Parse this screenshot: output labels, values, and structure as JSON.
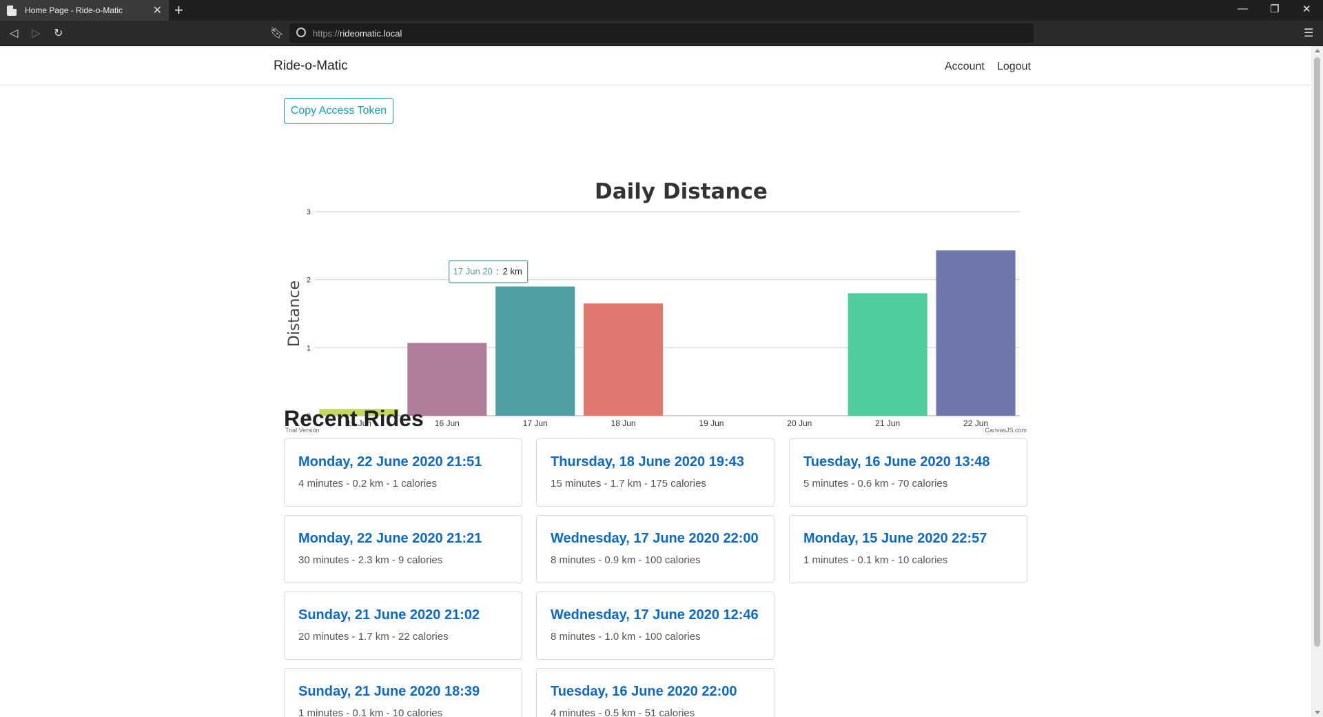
{
  "browser": {
    "tab_title": "Home Page - Ride-o-Matic",
    "url_scheme": "https://",
    "url_host": "rideomatic.local"
  },
  "site": {
    "brand": "Ride-o-Matic",
    "nav": {
      "account": "Account",
      "logout": "Logout"
    },
    "copy_token_label": "Copy Access Token"
  },
  "chart_data": {
    "type": "bar",
    "title": "Daily Distance",
    "ylabel": "Distance",
    "xlabel": "",
    "ylim": [
      0,
      3
    ],
    "yticks": [
      0,
      1,
      2,
      3
    ],
    "categories": [
      "15 Jun",
      "16 Jun",
      "17 Jun",
      "18 Jun",
      "19 Jun",
      "20 Jun",
      "21 Jun",
      "22 Jun"
    ],
    "values": [
      0.1,
      1.07,
      1.9,
      1.65,
      0,
      0,
      1.8,
      2.43
    ],
    "colors": [
      "#c5d65c",
      "#af7d99",
      "#4e9fa0",
      "#e07870",
      "#cccccc",
      "#cccccc",
      "#50cd9c",
      "#6f78ad"
    ],
    "tooltip": {
      "label": "17 Jun 20",
      "value": "2 km",
      "category_index": 2
    },
    "watermark_left": "Trial Version",
    "watermark_right": "CanvasJS.com"
  },
  "recent_rides": {
    "title": "Recent Rides",
    "columns": [
      [
        {
          "date": "Monday, 22 June 2020 21:51",
          "stats": "4 minutes - 0.2 km - 1 calories"
        },
        {
          "date": "Monday, 22 June 2020 21:21",
          "stats": "30 minutes - 2.3 km - 9 calories"
        },
        {
          "date": "Sunday, 21 June 2020 21:02",
          "stats": "20 minutes - 1.7 km - 22 calories"
        },
        {
          "date": "Sunday, 21 June 2020 18:39",
          "stats": "1 minutes - 0.1 km - 10 calories"
        }
      ],
      [
        {
          "date": "Thursday, 18 June 2020 19:43",
          "stats": "15 minutes - 1.7 km - 175 calories"
        },
        {
          "date": "Wednesday, 17 June 2020 22:00",
          "stats": "8 minutes - 0.9 km - 100 calories"
        },
        {
          "date": "Wednesday, 17 June 2020 12:46",
          "stats": "8 minutes - 1.0 km - 100 calories"
        },
        {
          "date": "Tuesday, 16 June 2020 22:00",
          "stats": "4 minutes - 0.5 km - 51 calories"
        }
      ],
      [
        {
          "date": "Tuesday, 16 June 2020 13:48",
          "stats": "5 minutes - 0.6 km - 70 calories"
        },
        {
          "date": "Monday, 15 June 2020 22:57",
          "stats": "1 minutes - 0.1 km - 10 calories"
        }
      ]
    ]
  }
}
